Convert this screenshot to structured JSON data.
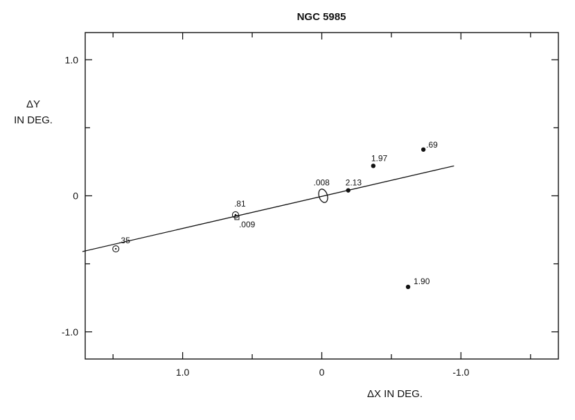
{
  "chart_data": {
    "type": "scatter",
    "title": "NGC 5985",
    "xlabel": "ΔX IN DEG.",
    "ylabel_line1": "ΔY",
    "ylabel_line2": "IN DEG.",
    "x_reversed": true,
    "xlim": [
      1.7,
      -1.7
    ],
    "ylim": [
      -1.2,
      1.2
    ],
    "x_ticks": [
      {
        "value": 1.0,
        "label": "1.0"
      },
      {
        "value": 0.0,
        "label": "0"
      },
      {
        "value": -1.0,
        "label": "-1.0"
      }
    ],
    "x_minor_ticks": [
      1.5,
      0.5,
      -0.5,
      -1.5
    ],
    "y_ticks": [
      {
        "value": 1.0,
        "label": "1.0"
      },
      {
        "value": 0.0,
        "label": "0"
      },
      {
        "value": -1.0,
        "label": "-1.0"
      }
    ],
    "y_minor_ticks": [
      0.5,
      -0.5
    ],
    "fit_line": {
      "x1": 1.72,
      "y1": -0.41,
      "x2": -0.95,
      "y2": 0.22
    },
    "points": [
      {
        "x": 1.48,
        "y": -0.39,
        "label": ".35",
        "marker": "open-circle-dot"
      },
      {
        "x": 0.62,
        "y": -0.14,
        "label": ".81",
        "marker": "open-circle-dot"
      },
      {
        "x": 0.61,
        "y": -0.16,
        "label": ".009",
        "marker": "small-square"
      },
      {
        "x": -0.01,
        "y": 0.0,
        "label": ".008",
        "marker": "ellipse"
      },
      {
        "x": -0.19,
        "y": 0.04,
        "label": "2.13",
        "marker": "filled-dot"
      },
      {
        "x": -0.37,
        "y": 0.22,
        "label": "1.97",
        "marker": "filled-dot"
      },
      {
        "x": -0.73,
        "y": 0.34,
        "label": ".69",
        "marker": "filled-dot"
      },
      {
        "x": -0.62,
        "y": -0.67,
        "label": "1.90",
        "marker": "filled-dot"
      }
    ],
    "grid": false
  }
}
